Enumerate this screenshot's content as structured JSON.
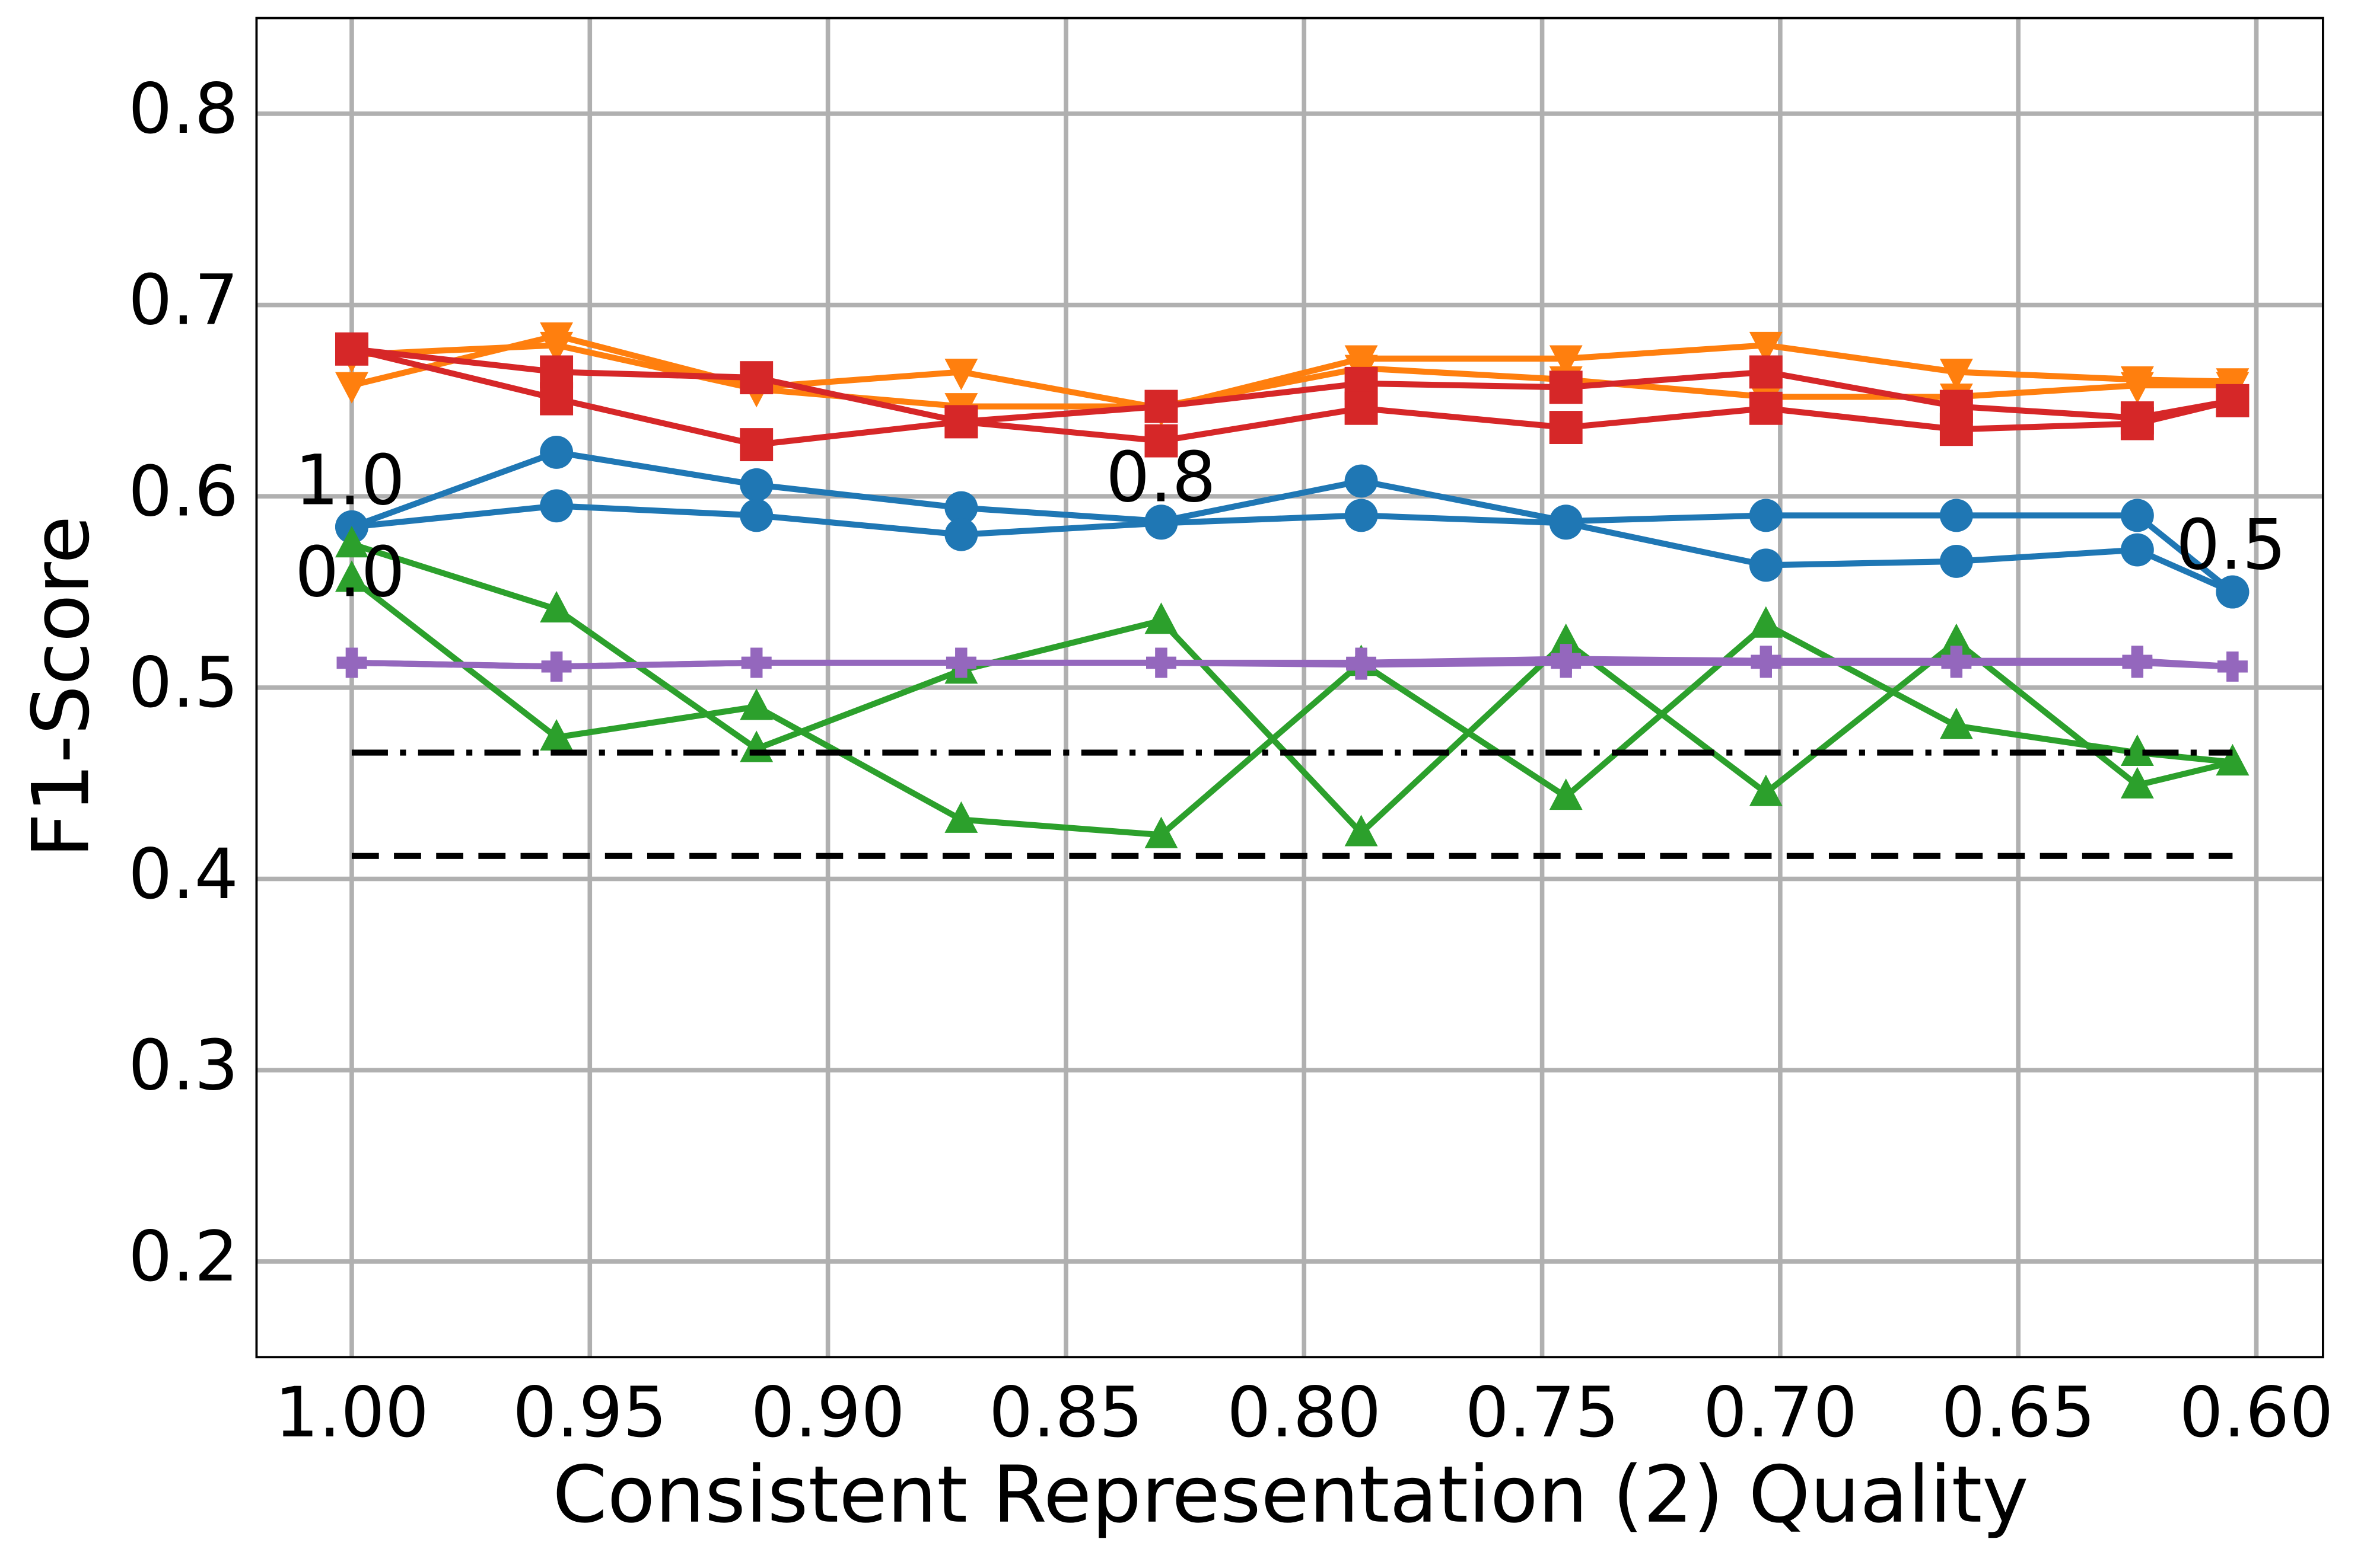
{
  "chart_data": {
    "type": "line",
    "xlabel": "Consistent Representation (2) Quality",
    "ylabel": "F1-Score",
    "x": [
      1.0,
      0.957,
      0.915,
      0.872,
      0.83,
      0.788,
      0.745,
      0.703,
      0.663,
      0.625,
      0.605
    ],
    "xlim": [
      1.02,
      0.586
    ],
    "ylim": [
      0.15,
      0.85
    ],
    "xticks": [
      {
        "value": 1.0,
        "label": "1.00"
      },
      {
        "value": 0.95,
        "label": "0.95"
      },
      {
        "value": 0.9,
        "label": "0.90"
      },
      {
        "value": 0.85,
        "label": "0.85"
      },
      {
        "value": 0.8,
        "label": "0.80"
      },
      {
        "value": 0.75,
        "label": "0.75"
      },
      {
        "value": 0.7,
        "label": "0.70"
      },
      {
        "value": 0.65,
        "label": "0.65"
      },
      {
        "value": 0.6,
        "label": "0.60"
      }
    ],
    "yticks": [
      0.2,
      0.3,
      0.4,
      0.5,
      0.6,
      0.7,
      0.8
    ],
    "grid": true,
    "series": [
      {
        "color": "#1f77b4",
        "marker": "circle",
        "values": [
          0.584,
          0.623,
          0.606,
          0.594,
          0.587,
          0.608,
          0.587,
          0.59,
          0.59,
          0.59,
          0.55
        ]
      },
      {
        "color": "#1f77b4",
        "marker": "circle",
        "values": [
          0.584,
          0.595,
          0.59,
          0.58,
          0.586,
          0.59,
          0.586,
          0.564,
          0.566,
          0.572,
          0.55
        ]
      },
      {
        "color": "#ff7f0e",
        "marker": "triangle-down",
        "values": [
          0.658,
          0.684,
          0.657,
          0.665,
          0.646,
          0.672,
          0.672,
          0.679,
          0.665,
          0.661,
          0.66
        ]
      },
      {
        "color": "#ff7f0e",
        "marker": "triangle-down",
        "values": [
          0.674,
          0.679,
          0.656,
          0.647,
          0.647,
          0.667,
          0.661,
          0.652,
          0.652,
          0.658,
          0.658
        ]
      },
      {
        "color": "#2ca02c",
        "marker": "triangle-up",
        "values": [
          0.575,
          0.541,
          0.468,
          0.509,
          0.535,
          0.424,
          0.524,
          0.445,
          0.524,
          0.449,
          0.461
        ]
      },
      {
        "color": "#2ca02c",
        "marker": "triangle-up",
        "values": [
          0.557,
          0.474,
          0.49,
          0.431,
          0.423,
          0.513,
          0.443,
          0.533,
          0.48,
          0.466,
          0.461
        ]
      },
      {
        "color": "#d62728",
        "marker": "square",
        "values": [
          0.677,
          0.665,
          0.662,
          0.639,
          0.647,
          0.659,
          0.657,
          0.665,
          0.647,
          0.641,
          0.65
        ]
      },
      {
        "color": "#d62728",
        "marker": "square",
        "values": [
          0.677,
          0.651,
          0.627,
          0.639,
          0.629,
          0.646,
          0.636,
          0.646,
          0.635,
          0.638,
          0.65
        ]
      },
      {
        "color": "#9467bd",
        "marker": "plus",
        "values": [
          0.513,
          0.511,
          0.513,
          0.513,
          0.513,
          0.512,
          0.513,
          0.513,
          0.513,
          0.513,
          0.511
        ]
      },
      {
        "color": "#9467bd",
        "marker": "plus",
        "values": [
          0.513,
          0.511,
          0.513,
          0.513,
          0.513,
          0.513,
          0.515,
          0.514,
          0.514,
          0.514,
          0.511
        ]
      }
    ],
    "hlines": [
      {
        "value": 0.466,
        "style": "dashdot",
        "color": "#000000"
      },
      {
        "value": 0.412,
        "style": "dashed",
        "color": "#000000"
      }
    ],
    "annotations": [
      "1.0",
      "0.0",
      "0.8",
      "0.5"
    ]
  }
}
